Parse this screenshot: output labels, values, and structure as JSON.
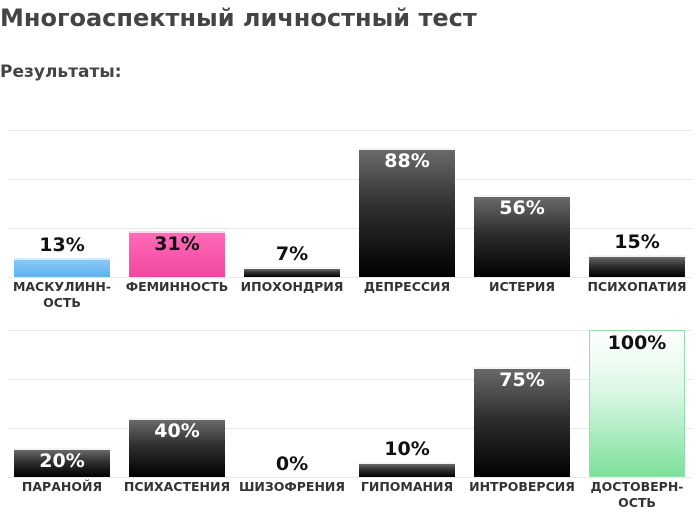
{
  "page": {
    "title": "Многоаспектный личностный тест",
    "results_heading": "Результаты:"
  },
  "chart_data": [
    {
      "type": "bar",
      "ylim": [
        0,
        100
      ],
      "grid": true,
      "categories": [
        "МАСКУЛИНН-\nОСТЬ",
        "ФЕМИННОСТЬ",
        "ИПОХОНДРИЯ",
        "ДЕПРЕССИЯ",
        "ИСТЕРИЯ",
        "ПСИХОПАТИЯ"
      ],
      "values": [
        13,
        31,
        7,
        88,
        56,
        15
      ],
      "value_labels": [
        "13%",
        "31%",
        "7%",
        "88%",
        "56%",
        "15%"
      ],
      "colors": [
        "#5ab3f0",
        "#f0479f",
        "#000000",
        "#000000",
        "#000000",
        "#000000"
      ]
    },
    {
      "type": "bar",
      "ylim": [
        0,
        100
      ],
      "grid": true,
      "categories": [
        "ПАРАНОЙЯ",
        "ПСИХАСТЕНИЯ",
        "ШИЗОФРЕНИЯ",
        "ГИПОМАНИЯ",
        "ИНТРОВЕРСИЯ",
        "ДОСТОВЕРН-\nОСТЬ"
      ],
      "values": [
        20,
        40,
        0,
        10,
        75,
        100
      ],
      "value_labels": [
        "20%",
        "40%",
        "0%",
        "10%",
        "75%",
        "100%"
      ],
      "colors": [
        "#000000",
        "#000000",
        "#000000",
        "#000000",
        "#000000",
        "#7ee09c"
      ]
    }
  ]
}
